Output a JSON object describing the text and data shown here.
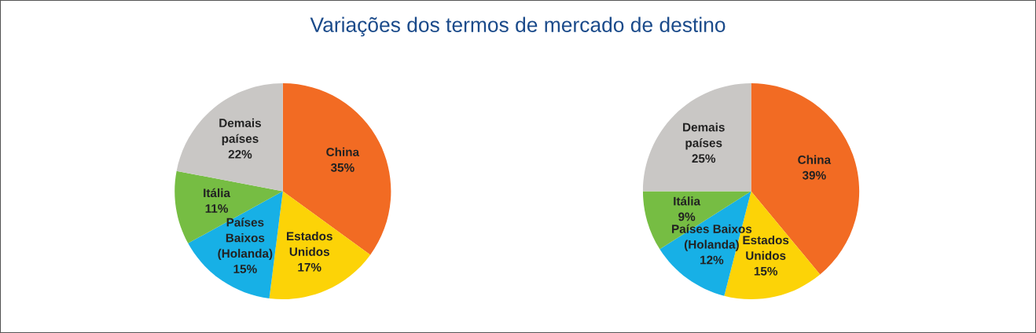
{
  "chart_data": [
    {
      "type": "pie",
      "title": "Variações dos termos de mercado de destino",
      "categories": [
        "China",
        "Estados\nUnidos",
        "Países\nBaixos\n(Holanda)",
        "Itália",
        "Demais\npaíses"
      ],
      "values": [
        35,
        17,
        15,
        11,
        22
      ],
      "value_labels": [
        "35%",
        "17%",
        "15%",
        "11%",
        "22%"
      ],
      "colors": [
        "#f26b23",
        "#fcd307",
        "#17b0e6",
        "#76bd43",
        "#c9c7c5"
      ]
    },
    {
      "type": "pie",
      "categories": [
        "China",
        "Estados\nUnidos",
        "Países Baixos\n(Holanda)",
        "Itália",
        "Demais\npaíses"
      ],
      "values": [
        39,
        15,
        12,
        9,
        25
      ],
      "value_labels": [
        "39%",
        "15%",
        "12%",
        "9%",
        "25%"
      ],
      "colors": [
        "#f26b23",
        "#fcd307",
        "#17b0e6",
        "#76bd43",
        "#c9c7c5"
      ]
    }
  ]
}
